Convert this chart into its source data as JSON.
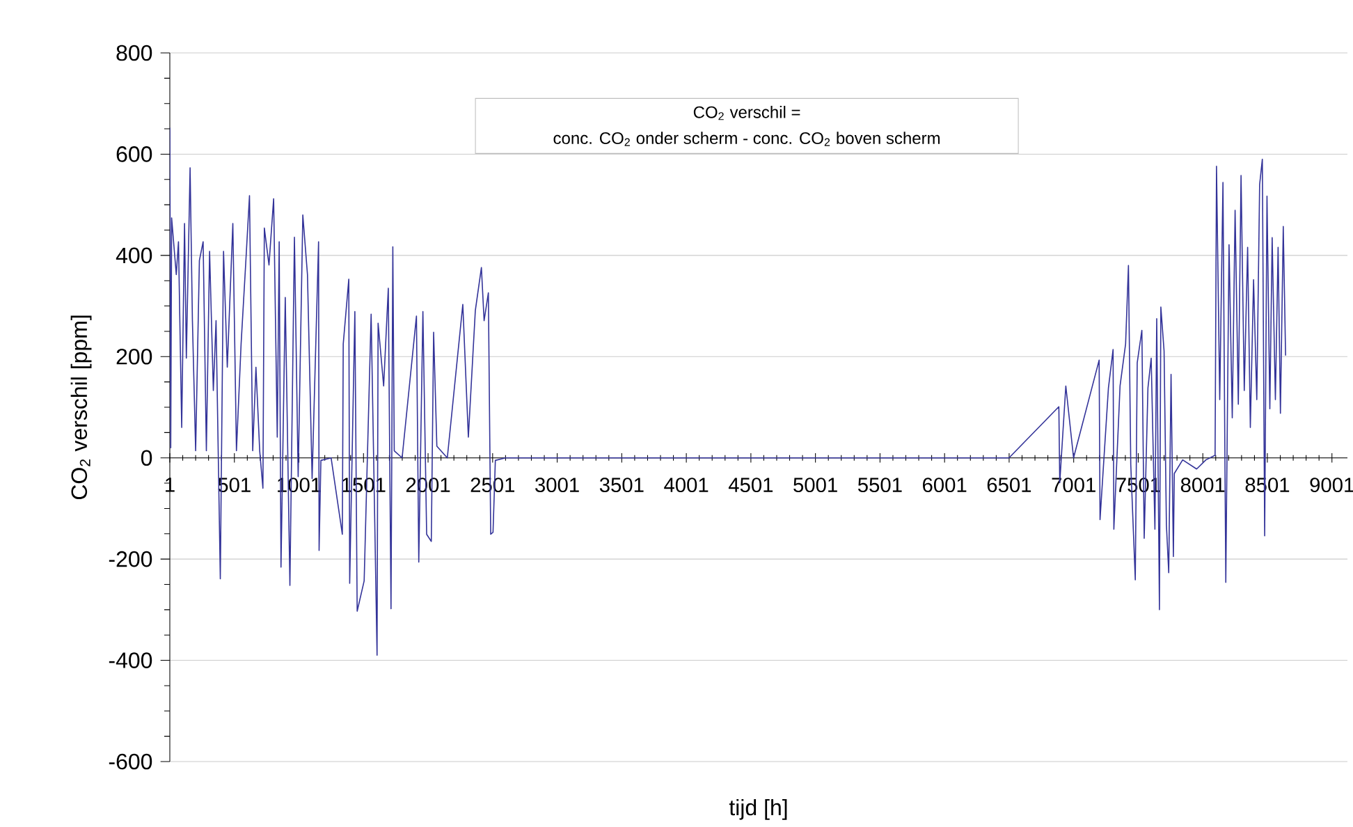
{
  "chart_data": {
    "type": "line",
    "xlabel": "tijd [h]",
    "ylabel": "CO$_{2}$ verschil [ppm]",
    "annotations": [
      "CO$_{2}$ verschil =",
      "conc. CO$_{2}$ onder scherm - conc. CO$_{2}$ boven scherm"
    ],
    "x": [
      1,
      8,
      15,
      51,
      68,
      93,
      115,
      129,
      158,
      176,
      201,
      230,
      259,
      284,
      309,
      338,
      359,
      392,
      417,
      446,
      489,
      517,
      553,
      589,
      618,
      643,
      668,
      697,
      722,
      733,
      769,
      805,
      833,
      848,
      862,
      895,
      931,
      966,
      995,
      1031,
      1067,
      1103,
      1153,
      1157,
      1171,
      1250,
      1337,
      1344,
      1387,
      1394,
      1434,
      1452,
      1506,
      1560,
      1606,
      1614,
      1657,
      1693,
      1714,
      1728,
      1739,
      1800,
      1911,
      1929,
      1961,
      1990,
      2026,
      2044,
      2069,
      2150,
      2270,
      2313,
      2367,
      2414,
      2435,
      2468,
      2486,
      2504,
      2522,
      2600,
      3500,
      4500,
      5500,
      6500,
      6886,
      6893,
      6940,
      7000,
      7198,
      7205,
      7270,
      7306,
      7312,
      7360,
      7403,
      7425,
      7443,
      7478,
      7493,
      7529,
      7547,
      7576,
      7601,
      7630,
      7644,
      7665,
      7676,
      7701,
      7719,
      7737,
      7755,
      7773,
      7780,
      7845,
      7953,
      8025,
      8096,
      8107,
      8132,
      8157,
      8179,
      8204,
      8229,
      8251,
      8276,
      8297,
      8322,
      8348,
      8369,
      8394,
      8419,
      8441,
      8462,
      8480,
      8498,
      8520,
      8538,
      8563,
      8584,
      8602,
      8624,
      8642
    ],
    "series": [
      {
        "color": "#333399",
        "values": [
          652,
          20,
          474,
          362,
          427,
          60,
          463,
          197,
          573,
          271,
          14,
          390,
          427,
          14,
          408,
          133,
          271,
          -239,
          408,
          179,
          463,
          14,
          225,
          385,
          518,
          14,
          179,
          14,
          -60,
          454,
          381,
          512,
          41,
          427,
          -216,
          317,
          -252,
          436,
          -37,
          480,
          362,
          -41,
          427,
          -183,
          -5,
          0,
          -151,
          225,
          353,
          -248,
          289,
          -303,
          -243,
          284,
          -390,
          266,
          142,
          335,
          -298,
          417,
          14,
          0,
          280,
          -206,
          289,
          -151,
          -165,
          248,
          23,
          0,
          303,
          41,
          291,
          376,
          271,
          326,
          -151,
          -147,
          -5,
          0,
          0,
          0,
          0,
          0,
          101,
          -49,
          142,
          0,
          193,
          -122,
          138,
          214,
          -141,
          142,
          225,
          380,
          -13,
          -241,
          188,
          252,
          -159,
          138,
          197,
          -141,
          275,
          -300,
          298,
          211,
          -132,
          -227,
          165,
          -195,
          -31,
          -4,
          -22,
          -4,
          5,
          576,
          115,
          544,
          -246,
          421,
          79,
          489,
          106,
          558,
          133,
          416,
          60,
          352,
          115,
          540,
          590,
          -154,
          517,
          97,
          435,
          115,
          416,
          88,
          457,
          202
        ]
      }
    ],
    "xlim": [
      1,
      9121
    ],
    "ylim": [
      -600,
      800
    ],
    "xticks": [
      1,
      501,
      1001,
      1501,
      2001,
      2501,
      3001,
      3501,
      4001,
      4501,
      5001,
      5501,
      6001,
      6501,
      7001,
      7501,
      8001,
      8501,
      9001
    ],
    "yticks": [
      -600,
      -400,
      -200,
      0,
      200,
      400,
      600,
      800
    ],
    "grid": "y",
    "marker": "none",
    "line_style": "solid"
  }
}
